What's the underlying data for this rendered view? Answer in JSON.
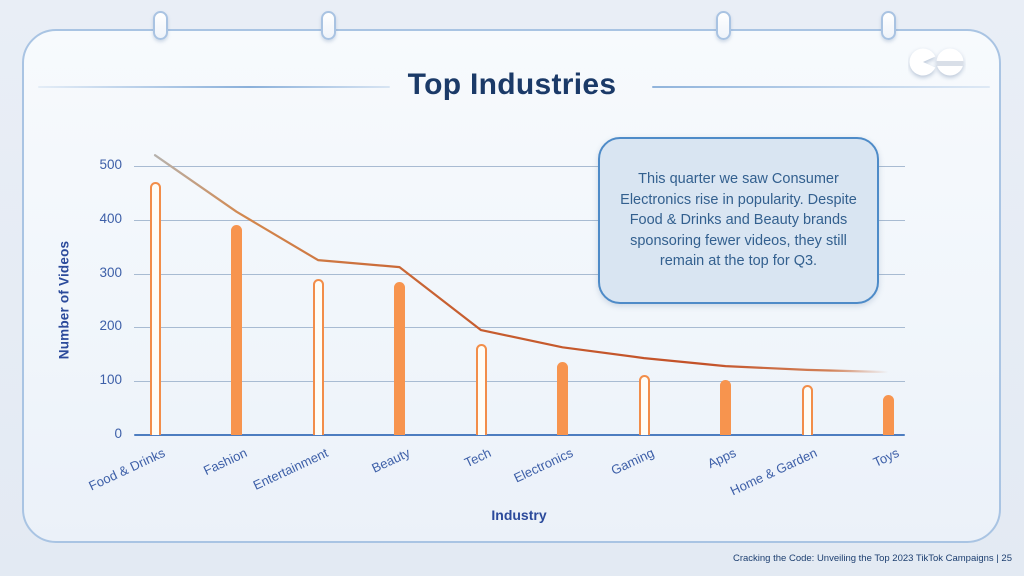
{
  "slide": {
    "title": "Top Industries",
    "footer": "Cracking the Code: Unveiling the Top 2023 TikTok Campaigns |  25"
  },
  "callout": {
    "text": "This quarter we saw Consumer Electronics rise in popularity. Despite Food & Drinks and Beauty brands sponsoring fewer videos, they still remain at the top for Q3."
  },
  "chart_data": {
    "type": "bar",
    "title": "Top Industries",
    "xlabel": "Industry",
    "ylabel": "Number of Videos",
    "ylim": [
      0,
      500
    ],
    "yticks": [
      0,
      100,
      200,
      300,
      400,
      500
    ],
    "grid": "horizontal",
    "legend": "none",
    "categories": [
      "Food & Drinks",
      "Fashion",
      "Entertainment",
      "Beauty",
      "Tech",
      "Electronics",
      "Gaming",
      "Apps",
      "Home & Garden",
      "Toys"
    ],
    "series": [
      {
        "name": "videos",
        "type": "bar",
        "values": [
          470,
          390,
          290,
          285,
          170,
          135,
          112,
          103,
          93,
          75
        ],
        "bar_styles": [
          "outline",
          "solid",
          "outline",
          "solid",
          "outline",
          "solid",
          "outline",
          "solid",
          "outline",
          "solid"
        ]
      },
      {
        "name": "trend",
        "type": "line",
        "values": [
          520,
          415,
          325,
          312,
          195,
          163,
          143,
          128,
          121,
          117
        ]
      }
    ],
    "colors": {
      "bar_solid": "#f7944e",
      "bar_outline": "#f28d49",
      "bar_outline_fill": "#fffdf6",
      "line_start": "#b6b2ad",
      "line_mid": "#c75f30",
      "line_end": "#cd6c3a",
      "grid": "#a8bbd2",
      "axis": "#4d7dc0",
      "tick_text": "#3d5fa8",
      "axis_title": "#2b4a9b",
      "title_text": "#1b3a68",
      "callout_fill": "#d9e5f2",
      "callout_border": "#4e8bc8"
    }
  }
}
